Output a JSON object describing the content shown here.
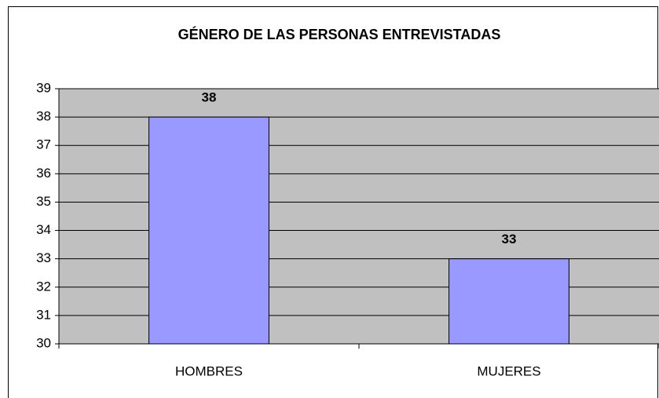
{
  "chart_data": {
    "type": "bar",
    "title": "GÉNERO DE LAS PERSONAS ENTREVISTADAS",
    "categories": [
      "HOMBRES",
      "MUJERES"
    ],
    "values": [
      38,
      33
    ],
    "color": "#9999ff",
    "ylim": [
      30,
      39
    ],
    "yticks": [
      30,
      31,
      32,
      33,
      34,
      35,
      36,
      37,
      38,
      39
    ],
    "grid": true
  }
}
